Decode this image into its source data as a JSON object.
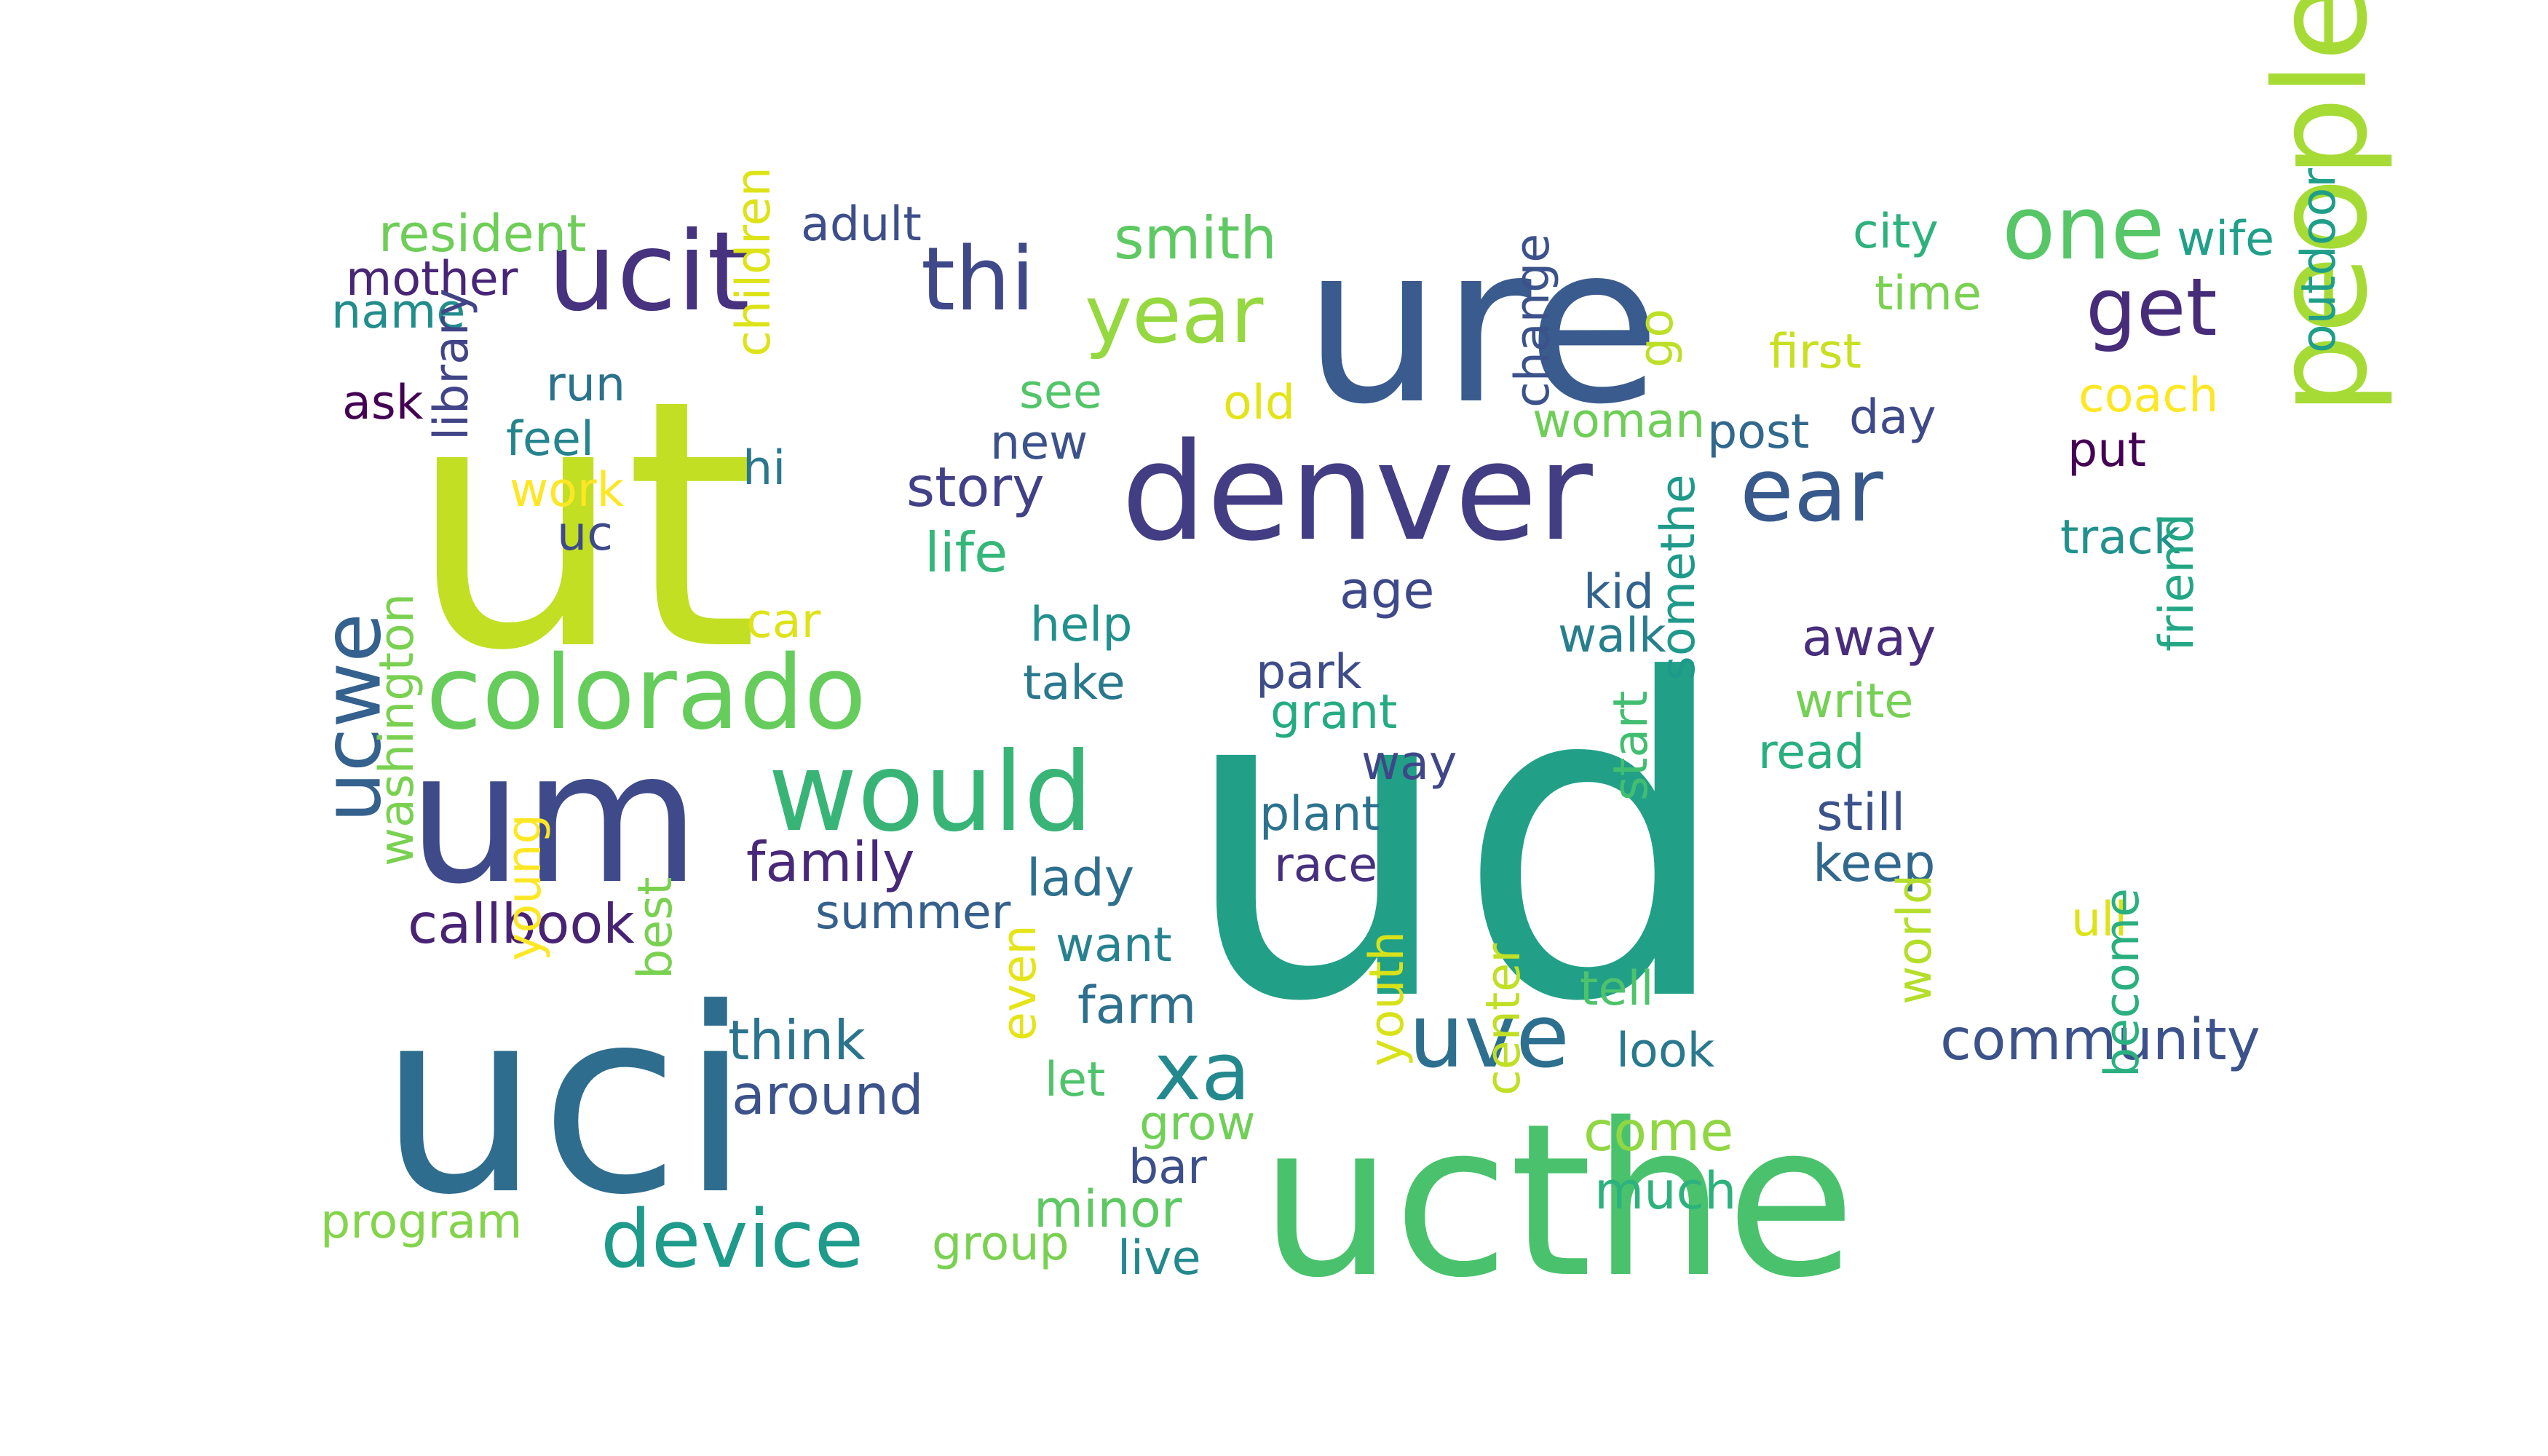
{
  "words": [
    {
      "text": "ud",
      "color": "#21a087"
    },
    {
      "text": "ut",
      "color": "#c2df23"
    },
    {
      "text": "ure",
      "color": "#3a5b8d"
    },
    {
      "text": "ucthe",
      "color": "#4ac26d"
    },
    {
      "text": "uci",
      "color": "#2e6d8e"
    },
    {
      "text": "um",
      "color": "#3f4a8a"
    },
    {
      "text": "denver",
      "color": "#433d84"
    },
    {
      "text": "people",
      "color": "#a6db35"
    },
    {
      "text": "colorado",
      "color": "#66cc5c"
    },
    {
      "text": "ucit",
      "color": "#46327e"
    },
    {
      "text": "would",
      "color": "#39b477"
    },
    {
      "text": "ucwe",
      "color": "#34618d"
    },
    {
      "text": "uve",
      "color": "#2d6f8e"
    },
    {
      "text": "ear",
      "color": "#38598c"
    },
    {
      "text": "one",
      "color": "#56c667"
    },
    {
      "text": "year",
      "color": "#95d840"
    },
    {
      "text": "thi",
      "color": "#3f4889"
    },
    {
      "text": "get",
      "color": "#472c7a"
    },
    {
      "text": "device",
      "color": "#1e9b8a"
    },
    {
      "text": "xa",
      "color": "#23898e"
    },
    {
      "text": "community",
      "color": "#3b528b"
    },
    {
      "text": "smith",
      "color": "#5ec962"
    },
    {
      "text": "resident",
      "color": "#6ece58"
    },
    {
      "text": "mother",
      "color": "#482576"
    },
    {
      "text": "name",
      "color": "#228d8d"
    },
    {
      "text": "adult",
      "color": "#3d4e8a"
    },
    {
      "text": "change",
      "color": "#3b528b"
    },
    {
      "text": "city",
      "color": "#2db27d"
    },
    {
      "text": "wife",
      "color": "#1fa088"
    },
    {
      "text": "time",
      "color": "#7ad151"
    },
    {
      "text": "first",
      "color": "#c8e020"
    },
    {
      "text": "go",
      "color": "#bddf26"
    },
    {
      "text": "see",
      "color": "#52c569"
    },
    {
      "text": "run",
      "color": "#2c728e"
    },
    {
      "text": "ask",
      "color": "#440154"
    },
    {
      "text": "old",
      "color": "#e2e418"
    },
    {
      "text": "woman",
      "color": "#6ece58"
    },
    {
      "text": "post",
      "color": "#31688e"
    },
    {
      "text": "day",
      "color": "#3e4989"
    },
    {
      "text": "coach",
      "color": "#fde725"
    },
    {
      "text": "put",
      "color": "#440154"
    },
    {
      "text": "outdoor",
      "color": "#1f9e89"
    },
    {
      "text": "feel",
      "color": "#25848e"
    },
    {
      "text": "work",
      "color": "#fde725"
    },
    {
      "text": "children",
      "color": "#dde318"
    },
    {
      "text": "hi",
      "color": "#2a788e"
    },
    {
      "text": "new",
      "color": "#3b528b"
    },
    {
      "text": "story",
      "color": "#424086"
    },
    {
      "text": "library",
      "color": "#414487"
    },
    {
      "text": "uc",
      "color": "#3e4a89"
    },
    {
      "text": "life",
      "color": "#35b779"
    },
    {
      "text": "track",
      "color": "#21918c"
    },
    {
      "text": "kid",
      "color": "#33638d"
    },
    {
      "text": "age",
      "color": "#3e4989"
    },
    {
      "text": "car",
      "color": "#dde318"
    },
    {
      "text": "help",
      "color": "#21918c"
    },
    {
      "text": "walk",
      "color": "#277f8e"
    },
    {
      "text": "away",
      "color": "#472d7b"
    },
    {
      "text": "take",
      "color": "#2a788e"
    },
    {
      "text": "park",
      "color": "#3e4c8a"
    },
    {
      "text": "grant",
      "color": "#25ab82"
    },
    {
      "text": "write",
      "color": "#75d054"
    },
    {
      "text": "somethe",
      "color": "#1f9a8a"
    },
    {
      "text": "read",
      "color": "#29af7f"
    },
    {
      "text": "friend",
      "color": "#22a785"
    },
    {
      "text": "way",
      "color": "#3f4788"
    },
    {
      "text": "plant",
      "color": "#2c728e"
    },
    {
      "text": "still",
      "color": "#3b528b"
    },
    {
      "text": "family",
      "color": "#482878"
    },
    {
      "text": "lady",
      "color": "#2e6f8e"
    },
    {
      "text": "race",
      "color": "#46307e"
    },
    {
      "text": "start",
      "color": "#42be71"
    },
    {
      "text": "keep",
      "color": "#31688e"
    },
    {
      "text": "summer",
      "color": "#35608d"
    },
    {
      "text": "callbook",
      "color": "#482374"
    },
    {
      "text": "ull",
      "color": "#dde318"
    },
    {
      "text": "washington",
      "color": "#7ad151"
    },
    {
      "text": "want",
      "color": "#26828e"
    },
    {
      "text": "tell",
      "color": "#4ec36b"
    },
    {
      "text": "farm",
      "color": "#2e6f8e"
    },
    {
      "text": "young",
      "color": "#fde725"
    },
    {
      "text": "best",
      "color": "#7ad151"
    },
    {
      "text": "think",
      "color": "#2b748e"
    },
    {
      "text": "let",
      "color": "#4fc46a"
    },
    {
      "text": "look",
      "color": "#29798e"
    },
    {
      "text": "world",
      "color": "#b5de2b"
    },
    {
      "text": "around",
      "color": "#3b528b"
    },
    {
      "text": "even",
      "color": "#e5e419"
    },
    {
      "text": "come",
      "color": "#90d743"
    },
    {
      "text": "grow",
      "color": "#70cf57"
    },
    {
      "text": "youth",
      "color": "#d8e219"
    },
    {
      "text": "center",
      "color": "#c0df25"
    },
    {
      "text": "become",
      "color": "#2ab07f"
    },
    {
      "text": "bar",
      "color": "#3c4f8a"
    },
    {
      "text": "much",
      "color": "#2db27d"
    },
    {
      "text": "minor",
      "color": "#5ec962"
    },
    {
      "text": "program",
      "color": "#84d44b"
    },
    {
      "text": "group",
      "color": "#7ad151"
    },
    {
      "text": "live",
      "color": "#23898e"
    }
  ]
}
